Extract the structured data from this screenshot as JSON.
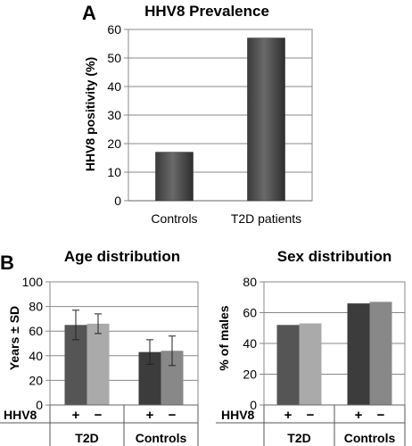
{
  "panels": {
    "a_label": "A",
    "b_label": "B"
  },
  "chart_data": [
    {
      "type": "bar",
      "title": "HHV8 Prevalence",
      "ylabel": "HHV8 positivity (%)",
      "xlabel": "",
      "categories": [
        "Controls",
        "T2D patients"
      ],
      "values": [
        17,
        57
      ],
      "ylim": [
        0,
        60
      ],
      "yticks": [
        0,
        10,
        20,
        30,
        40,
        50,
        60
      ],
      "grid": true,
      "colors": {
        "bar": "#4a4a4a"
      }
    },
    {
      "type": "bar",
      "title": "Age distribution",
      "ylabel": "Years ± SD",
      "ylim": [
        0,
        100
      ],
      "yticks": [
        0,
        20,
        40,
        60,
        80,
        100
      ],
      "grid": true,
      "row_label": "HHV8",
      "groups": [
        "T2D",
        "Controls"
      ],
      "bar_labels": [
        "+",
        "−",
        "+",
        "−"
      ],
      "values": [
        65,
        66,
        43,
        44
      ],
      "errors": [
        12,
        8,
        10,
        12
      ],
      "colors": [
        "#555555",
        "#aaaaaa",
        "#3c3c3c",
        "#888888"
      ]
    },
    {
      "type": "bar",
      "title": "Sex distribution",
      "ylabel": "% of males",
      "ylim": [
        0,
        80
      ],
      "yticks": [
        0,
        20,
        40,
        60,
        80
      ],
      "grid": true,
      "row_label": "HHV8",
      "groups": [
        "T2D",
        "Controls"
      ],
      "bar_labels": [
        "+",
        "−",
        "+",
        "−"
      ],
      "values": [
        52,
        53,
        66,
        67
      ],
      "colors": [
        "#555555",
        "#aaaaaa",
        "#3c3c3c",
        "#888888"
      ]
    }
  ]
}
